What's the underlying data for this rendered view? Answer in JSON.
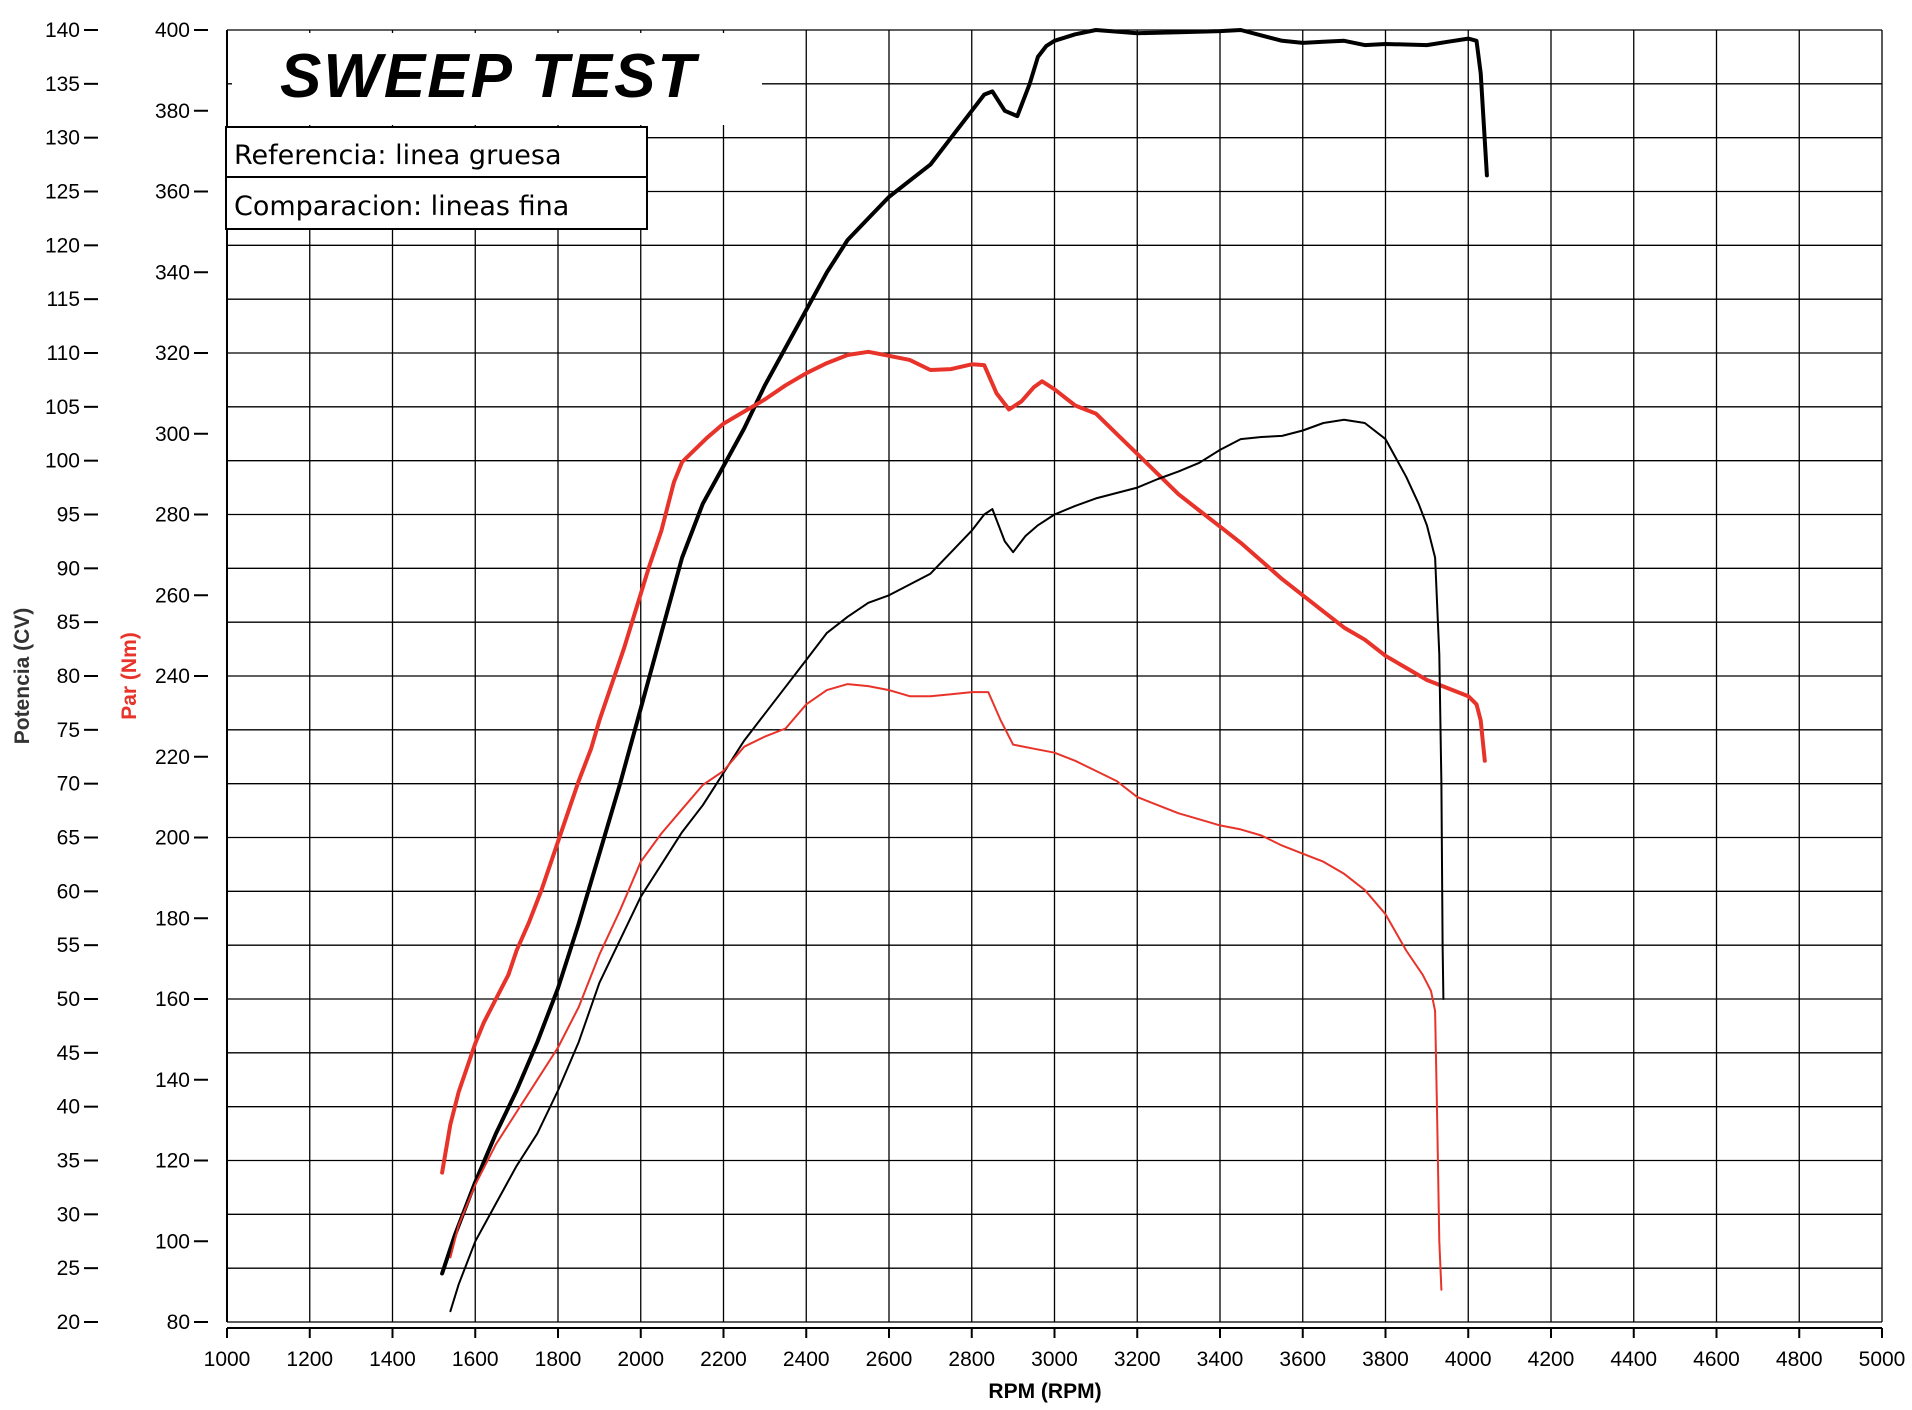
{
  "chart_data": {
    "type": "line",
    "title": "SWEEP TEST",
    "xlabel": "RPM (RPM)",
    "ylabel_power": "Potencia (CV)",
    "ylabel_torque": "Par (Nm)",
    "xlim": [
      1000,
      5000
    ],
    "ylim_power": [
      20,
      140
    ],
    "ylim_torque": [
      80,
      400
    ],
    "x_ticks": [
      "1000",
      "1200",
      "1400",
      "1600",
      "1800",
      "2000",
      "2200",
      "2400",
      "2600",
      "2800",
      "3000",
      "3200",
      "3400",
      "3600",
      "3800",
      "4000",
      "4200",
      "4400",
      "4600",
      "4800",
      "5000"
    ],
    "power_ticks": [
      "20",
      "25",
      "30",
      "35",
      "40",
      "45",
      "50",
      "55",
      "60",
      "65",
      "70",
      "75",
      "80",
      "85",
      "90",
      "95",
      "100",
      "105",
      "110",
      "115",
      "120",
      "125",
      "130",
      "135",
      "140"
    ],
    "torque_ticks": [
      "80",
      "100",
      "120",
      "140",
      "160",
      "180",
      "200",
      "220",
      "240",
      "260",
      "280",
      "300",
      "320",
      "340",
      "360",
      "380",
      "400"
    ],
    "legend": {
      "reference": "Referencia: linea gruesa",
      "comparison": "Comparacion: lineas fina"
    },
    "colors": {
      "power": "#000000",
      "torque": "#e8332a",
      "grid": "#000000"
    },
    "series": [
      {
        "name": "Potencia referencia",
        "axis": "power",
        "color": "#000000",
        "width": 4,
        "points": [
          [
            1520,
            24.5
          ],
          [
            1550,
            28
          ],
          [
            1600,
            33
          ],
          [
            1650,
            37.5
          ],
          [
            1700,
            41.5
          ],
          [
            1750,
            46
          ],
          [
            1800,
            51
          ],
          [
            1850,
            57
          ],
          [
            1900,
            63.5
          ],
          [
            1950,
            70
          ],
          [
            2000,
            77
          ],
          [
            2050,
            84
          ],
          [
            2100,
            91
          ],
          [
            2150,
            96
          ],
          [
            2200,
            99.5
          ],
          [
            2250,
            103
          ],
          [
            2300,
            107
          ],
          [
            2350,
            110.5
          ],
          [
            2400,
            114
          ],
          [
            2450,
            117.5
          ],
          [
            2500,
            120.5
          ],
          [
            2550,
            122.5
          ],
          [
            2600,
            124.5
          ],
          [
            2650,
            126
          ],
          [
            2700,
            127.5
          ],
          [
            2750,
            130
          ],
          [
            2800,
            132.5
          ],
          [
            2830,
            134
          ],
          [
            2850,
            134.3
          ],
          [
            2880,
            132.5
          ],
          [
            2910,
            132
          ],
          [
            2940,
            135
          ],
          [
            2960,
            137.5
          ],
          [
            2980,
            138.5
          ],
          [
            3000,
            139
          ],
          [
            3050,
            139.6
          ],
          [
            3100,
            140
          ],
          [
            3200,
            139.7
          ],
          [
            3300,
            139.8
          ],
          [
            3400,
            139.9
          ],
          [
            3450,
            140
          ],
          [
            3500,
            139.5
          ],
          [
            3550,
            139
          ],
          [
            3600,
            138.8
          ],
          [
            3650,
            138.9
          ],
          [
            3700,
            139
          ],
          [
            3750,
            138.6
          ],
          [
            3800,
            138.7
          ],
          [
            3900,
            138.6
          ],
          [
            3950,
            138.9
          ],
          [
            4000,
            139.2
          ],
          [
            4020,
            139
          ],
          [
            4030,
            136
          ],
          [
            4045,
            126.5
          ]
        ]
      },
      {
        "name": "Par referencia",
        "axis": "torque",
        "color": "#e8332a",
        "width": 4,
        "points": [
          [
            1520,
            117
          ],
          [
            1540,
            129
          ],
          [
            1560,
            137
          ],
          [
            1580,
            143
          ],
          [
            1600,
            149
          ],
          [
            1620,
            154
          ],
          [
            1650,
            160
          ],
          [
            1680,
            166
          ],
          [
            1700,
            172
          ],
          [
            1730,
            179
          ],
          [
            1760,
            187
          ],
          [
            1790,
            196
          ],
          [
            1820,
            205
          ],
          [
            1850,
            214
          ],
          [
            1880,
            222
          ],
          [
            1900,
            229
          ],
          [
            1930,
            238
          ],
          [
            1960,
            247
          ],
          [
            1990,
            257
          ],
          [
            2020,
            267
          ],
          [
            2050,
            276
          ],
          [
            2080,
            288
          ],
          [
            2100,
            293
          ],
          [
            2130,
            296
          ],
          [
            2160,
            299
          ],
          [
            2200,
            302.5
          ],
          [
            2250,
            305.5
          ],
          [
            2300,
            308.5
          ],
          [
            2350,
            312
          ],
          [
            2400,
            315
          ],
          [
            2450,
            317.5
          ],
          [
            2500,
            319.5
          ],
          [
            2550,
            320.3
          ],
          [
            2600,
            319.3
          ],
          [
            2650,
            318.3
          ],
          [
            2700,
            315.8
          ],
          [
            2750,
            316
          ],
          [
            2800,
            317.2
          ],
          [
            2830,
            317
          ],
          [
            2860,
            310
          ],
          [
            2890,
            306
          ],
          [
            2920,
            308
          ],
          [
            2950,
            311.5
          ],
          [
            2970,
            313
          ],
          [
            3000,
            311
          ],
          [
            3050,
            307
          ],
          [
            3100,
            305
          ],
          [
            3150,
            300
          ],
          [
            3200,
            295
          ],
          [
            3250,
            290
          ],
          [
            3300,
            285
          ],
          [
            3350,
            281
          ],
          [
            3400,
            277
          ],
          [
            3450,
            273
          ],
          [
            3500,
            268.5
          ],
          [
            3550,
            264
          ],
          [
            3600,
            260
          ],
          [
            3650,
            256
          ],
          [
            3700,
            252
          ],
          [
            3750,
            249
          ],
          [
            3800,
            245
          ],
          [
            3850,
            242
          ],
          [
            3900,
            239
          ],
          [
            3950,
            237
          ],
          [
            4000,
            235
          ],
          [
            4020,
            233
          ],
          [
            4030,
            229
          ],
          [
            4040,
            219
          ]
        ]
      },
      {
        "name": "Potencia comparacion",
        "axis": "power",
        "color": "#000000",
        "width": 2,
        "points": [
          [
            1540,
            21
          ],
          [
            1560,
            23.5
          ],
          [
            1600,
            27.5
          ],
          [
            1650,
            31
          ],
          [
            1700,
            34.5
          ],
          [
            1750,
            37.5
          ],
          [
            1800,
            41.5
          ],
          [
            1850,
            46
          ],
          [
            1900,
            51.5
          ],
          [
            1950,
            55.5
          ],
          [
            2000,
            59.5
          ],
          [
            2050,
            62.5
          ],
          [
            2100,
            65.5
          ],
          [
            2150,
            68
          ],
          [
            2200,
            71
          ],
          [
            2250,
            74
          ],
          [
            2300,
            76.5
          ],
          [
            2350,
            79
          ],
          [
            2400,
            81.5
          ],
          [
            2450,
            84
          ],
          [
            2500,
            85.5
          ],
          [
            2550,
            86.8
          ],
          [
            2600,
            87.5
          ],
          [
            2650,
            88.5
          ],
          [
            2700,
            89.5
          ],
          [
            2750,
            91.5
          ],
          [
            2800,
            93.5
          ],
          [
            2830,
            95
          ],
          [
            2850,
            95.5
          ],
          [
            2880,
            92.5
          ],
          [
            2900,
            91.5
          ],
          [
            2930,
            93
          ],
          [
            2960,
            94
          ],
          [
            3000,
            95
          ],
          [
            3050,
            95.8
          ],
          [
            3100,
            96.5
          ],
          [
            3150,
            97
          ],
          [
            3200,
            97.5
          ],
          [
            3250,
            98.3
          ],
          [
            3300,
            99
          ],
          [
            3350,
            99.8
          ],
          [
            3400,
            101
          ],
          [
            3450,
            102
          ],
          [
            3500,
            102.2
          ],
          [
            3550,
            102.3
          ],
          [
            3600,
            102.8
          ],
          [
            3650,
            103.5
          ],
          [
            3700,
            103.8
          ],
          [
            3750,
            103.5
          ],
          [
            3800,
            102
          ],
          [
            3850,
            98.5
          ],
          [
            3880,
            96
          ],
          [
            3900,
            94
          ],
          [
            3920,
            91
          ],
          [
            3930,
            82
          ],
          [
            3935,
            70
          ],
          [
            3938,
            55
          ],
          [
            3940,
            50
          ]
        ]
      },
      {
        "name": "Par comparacion",
        "axis": "torque",
        "color": "#e8332a",
        "width": 2,
        "points": [
          [
            1540,
            96
          ],
          [
            1560,
            104
          ],
          [
            1600,
            114
          ],
          [
            1650,
            124
          ],
          [
            1700,
            132
          ],
          [
            1750,
            140
          ],
          [
            1800,
            148
          ],
          [
            1850,
            158
          ],
          [
            1900,
            171
          ],
          [
            1950,
            182
          ],
          [
            2000,
            194
          ],
          [
            2050,
            201
          ],
          [
            2100,
            207
          ],
          [
            2150,
            213
          ],
          [
            2200,
            216.5
          ],
          [
            2250,
            222.5
          ],
          [
            2300,
            225
          ],
          [
            2350,
            227
          ],
          [
            2400,
            233
          ],
          [
            2450,
            236.5
          ],
          [
            2500,
            238
          ],
          [
            2550,
            237.5
          ],
          [
            2600,
            236.5
          ],
          [
            2650,
            235
          ],
          [
            2700,
            235
          ],
          [
            2750,
            235.5
          ],
          [
            2800,
            236
          ],
          [
            2840,
            236
          ],
          [
            2870,
            229
          ],
          [
            2900,
            223
          ],
          [
            2950,
            222
          ],
          [
            3000,
            221
          ],
          [
            3050,
            219
          ],
          [
            3100,
            216.5
          ],
          [
            3150,
            214
          ],
          [
            3200,
            210
          ],
          [
            3250,
            208
          ],
          [
            3300,
            206
          ],
          [
            3350,
            204.5
          ],
          [
            3400,
            203
          ],
          [
            3450,
            202
          ],
          [
            3500,
            200.5
          ],
          [
            3550,
            198
          ],
          [
            3600,
            196
          ],
          [
            3650,
            194
          ],
          [
            3700,
            191
          ],
          [
            3750,
            187
          ],
          [
            3800,
            181
          ],
          [
            3850,
            172
          ],
          [
            3890,
            166
          ],
          [
            3910,
            162
          ],
          [
            3920,
            157
          ],
          [
            3925,
            130
          ],
          [
            3930,
            100
          ],
          [
            3935,
            88
          ]
        ]
      }
    ]
  }
}
